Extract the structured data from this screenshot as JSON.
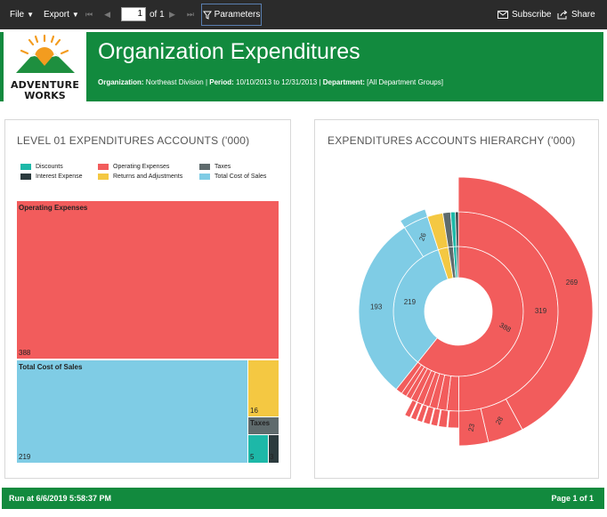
{
  "toolbar": {
    "file": "File",
    "export": "Export",
    "page_value": "1",
    "page_of": "of 1",
    "parameters": "Parameters",
    "subscribe": "Subscribe",
    "share": "Share"
  },
  "header": {
    "logo_line1": "ADVENTURE",
    "logo_line2": "WORKS",
    "title": "Organization Expenditures",
    "org_label": "Organization:",
    "org_value": "Northeast Division",
    "period_label": "Period:",
    "period_value": "10/10/2013 to 12/31/2013",
    "dept_label": "Department:",
    "dept_value": "[All Department Groups]",
    "sep": " | "
  },
  "left_panel": {
    "title": "LEVEL 01 EXPENDITURES ACCOUNTS ('000)",
    "legend": [
      {
        "label": "Discounts",
        "color": "#1db8a8"
      },
      {
        "label": "Operating Expenses",
        "color": "#f25c5c"
      },
      {
        "label": "Taxes",
        "color": "#5f6b6d"
      },
      {
        "label": "Interest Expense",
        "color": "#2c3b3e"
      },
      {
        "label": "Returns and Adjustments",
        "color": "#f4c842"
      },
      {
        "label": "Total Cost of Sales",
        "color": "#7fcce5"
      }
    ]
  },
  "chart_data": [
    {
      "type": "treemap",
      "title": "LEVEL 01 EXPENDITURES ACCOUNTS ('000)",
      "items": [
        {
          "name": "Operating Expenses",
          "value": 388,
          "color": "#f25c5c"
        },
        {
          "name": "Total Cost of Sales",
          "value": 219,
          "color": "#7fcce5"
        },
        {
          "name": "Returns and Adjustments",
          "value": 16,
          "color": "#f4c842"
        },
        {
          "name": "Taxes",
          "value": "",
          "color": "#5f6b6d"
        },
        {
          "name": "Discounts",
          "value": 5,
          "color": "#1db8a8"
        },
        {
          "name": "Interest Expense",
          "value": 3,
          "color": "#2c3b3e"
        }
      ]
    },
    {
      "type": "sunburst",
      "title": "EXPENDITURES ACCOUNTS HIERARCHY ('000)",
      "inner_ring": [
        {
          "name": "Operating Expenses",
          "value": 388,
          "color": "#f25c5c"
        },
        {
          "name": "Total Cost of Sales",
          "value": 219,
          "color": "#7fcce5"
        },
        {
          "name": "Returns and Adjustments",
          "value": 16,
          "color": "#f4c842"
        },
        {
          "name": "Taxes",
          "value": 8,
          "color": "#5f6b6d"
        },
        {
          "name": "Discounts",
          "value": 5,
          "color": "#1db8a8"
        },
        {
          "name": "Interest Expense",
          "value": 3,
          "color": "#2c3b3e"
        }
      ],
      "visible_labels": {
        "inner": [
          "388",
          "219"
        ],
        "middle": [
          "319",
          "193",
          "26"
        ],
        "outer": [
          "269",
          "28",
          "23"
        ]
      }
    }
  ],
  "right_panel": {
    "title": "EXPENDITURES ACCOUNTS HIERARCHY ('000)",
    "labels": {
      "l388": "388",
      "l219": "219",
      "l319": "319",
      "l193": "193",
      "l26": "26",
      "l269": "269",
      "l28": "28",
      "l23": "23"
    }
  },
  "footer": {
    "run": "Run at 6/6/2019 5:58:37 PM",
    "page": "Page 1 of 1"
  }
}
